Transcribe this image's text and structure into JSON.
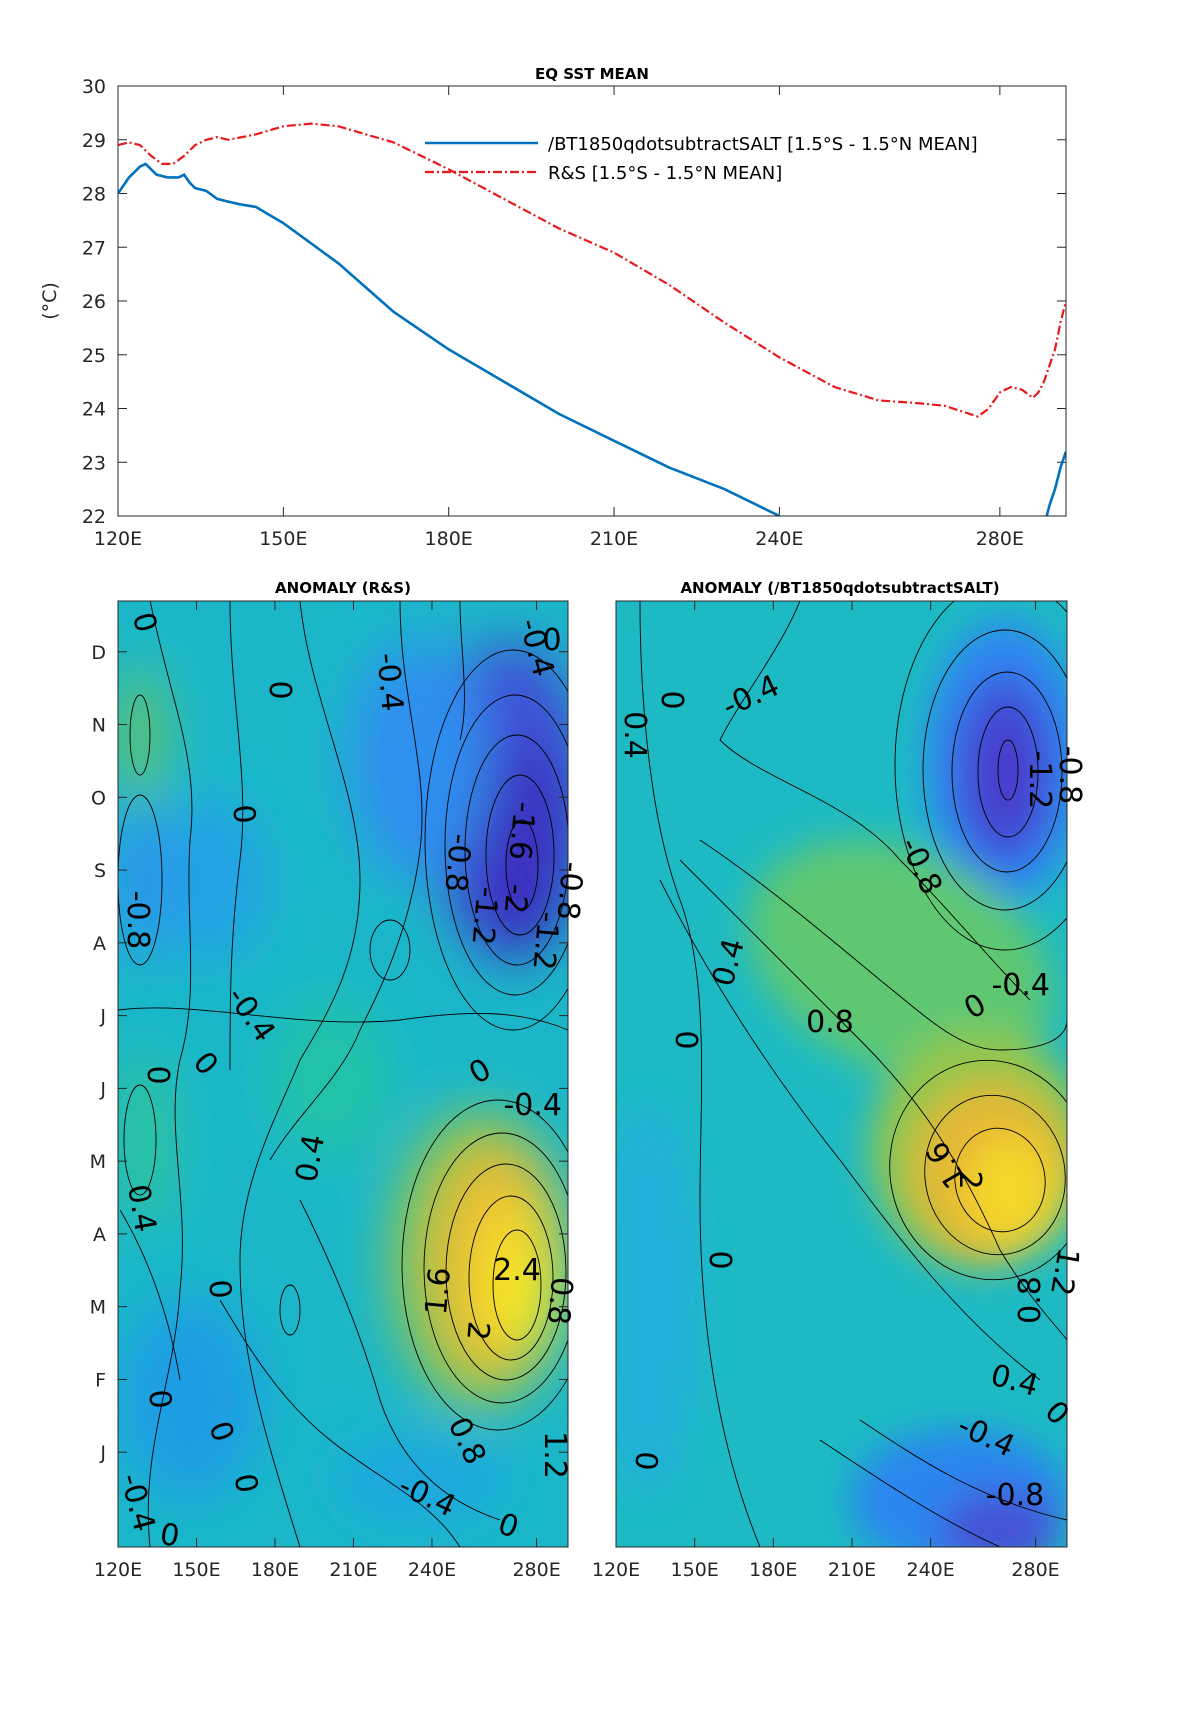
{
  "top_title": "EQ SST MEAN",
  "top_ylabel": "(°C)",
  "left_title": "ANOMALY (R&S)",
  "right_title": "ANOMALY (/BT1850qdotsubtractSALT)",
  "colors": {
    "blue": "#0072BD",
    "red": "#E8191C",
    "cmap": [
      "#3E26A8",
      "#4743D0",
      "#3A8AF5",
      "#23ACE0",
      "#15BFB6",
      "#3DC67E",
      "#9BC64A",
      "#E4B935",
      "#F9D92A",
      "#F9FB0E"
    ]
  },
  "chart_data": [
    {
      "type": "line",
      "title": "EQ SST MEAN",
      "xlabel": "",
      "ylabel": "(°C)",
      "xlim": [
        120,
        292
      ],
      "ylim": [
        22,
        30
      ],
      "xticks": [
        120,
        150,
        180,
        210,
        240,
        280
      ],
      "xtick_labels": [
        "120E",
        "150E",
        "180E",
        "210E",
        "240E",
        "280E"
      ],
      "yticks": [
        22,
        23,
        24,
        25,
        26,
        27,
        28,
        29,
        30
      ],
      "grid": false,
      "legend_position": "top-right",
      "series": [
        {
          "name": "/BT1850qdotsubtractSALT [1.5°S - 1.5°N MEAN]",
          "color": "#0072BD",
          "style": "solid",
          "x": [
            120,
            122,
            124,
            125,
            127,
            129,
            131,
            132,
            133,
            134,
            136,
            138,
            140,
            142,
            145,
            150,
            160,
            170,
            180,
            190,
            200,
            210,
            220,
            230,
            240,
            288.5,
            289,
            290,
            291,
            292
          ],
          "y": [
            28.0,
            28.3,
            28.5,
            28.55,
            28.35,
            28.3,
            28.3,
            28.35,
            28.2,
            28.1,
            28.05,
            27.9,
            27.85,
            27.8,
            27.75,
            27.45,
            26.7,
            25.8,
            25.1,
            24.5,
            23.9,
            23.4,
            22.9,
            22.5,
            22.0,
            22.0,
            22.2,
            22.5,
            22.9,
            23.2
          ]
        },
        {
          "name": "R&S [1.5°S - 1.5°N MEAN]",
          "color": "#E8191C",
          "style": "dashdot",
          "x": [
            120,
            122,
            124,
            126,
            128,
            130,
            132,
            134,
            136,
            138,
            140,
            145,
            150,
            155,
            160,
            165,
            170,
            180,
            190,
            200,
            210,
            220,
            230,
            240,
            250,
            258,
            265,
            270,
            273,
            276,
            278,
            280,
            282,
            284,
            286,
            287,
            288,
            289,
            290,
            291,
            292
          ],
          "y": [
            28.9,
            28.95,
            28.9,
            28.7,
            28.55,
            28.55,
            28.7,
            28.9,
            29.0,
            29.05,
            29.0,
            29.1,
            29.25,
            29.3,
            29.25,
            29.1,
            28.95,
            28.45,
            27.9,
            27.35,
            26.9,
            26.3,
            25.6,
            24.95,
            24.4,
            24.15,
            24.1,
            24.05,
            23.95,
            23.85,
            24.0,
            24.3,
            24.4,
            24.35,
            24.2,
            24.3,
            24.5,
            24.8,
            25.1,
            25.6,
            26.0
          ]
        }
      ]
    },
    {
      "type": "heatmap",
      "title": "ANOMALY (R&S)",
      "xlim": [
        120,
        292
      ],
      "xtick_labels": [
        "120E",
        "150E",
        "180E",
        "210E",
        "240E",
        "280E"
      ],
      "ytick_labels": [
        "J",
        "F",
        "M",
        "A",
        "M",
        "J",
        "J",
        "A",
        "S",
        "O",
        "N",
        "D"
      ],
      "contour_interval": 0.4,
      "contour_labels": [
        "0",
        "0",
        "-0.4",
        "-0.4",
        "0",
        "0",
        "-0.8",
        "-1.2",
        "-1.6",
        "-2",
        "-0.8",
        "-1.2",
        "-0.8",
        "-0.4",
        "-0.4",
        "0",
        "0",
        "0",
        "0.4",
        "0.4",
        "0",
        "2.4",
        "1.6",
        "2",
        "0.8",
        "0.8",
        "1.2",
        "-0.4",
        "0",
        "0",
        "0",
        "0",
        "-0.4",
        "0"
      ]
    },
    {
      "type": "heatmap",
      "title": "ANOMALY (/BT1850qdotsubtractSALT)",
      "xlim": [
        120,
        292
      ],
      "xtick_labels": [
        "120E",
        "150E",
        "180E",
        "210E",
        "240E",
        "280E"
      ],
      "ytick_labels": [],
      "contour_interval": 0.4,
      "contour_labels": [
        "0.4",
        "0",
        "-0.4",
        "-0.8",
        "-1.2",
        "-0.8",
        "-0.4",
        "0",
        "0.4",
        "0.8",
        "0",
        "1.6",
        "2",
        "1.2",
        "0.8",
        "0.4",
        "0",
        "0",
        "-0.4",
        "-0.8",
        "0"
      ]
    }
  ]
}
